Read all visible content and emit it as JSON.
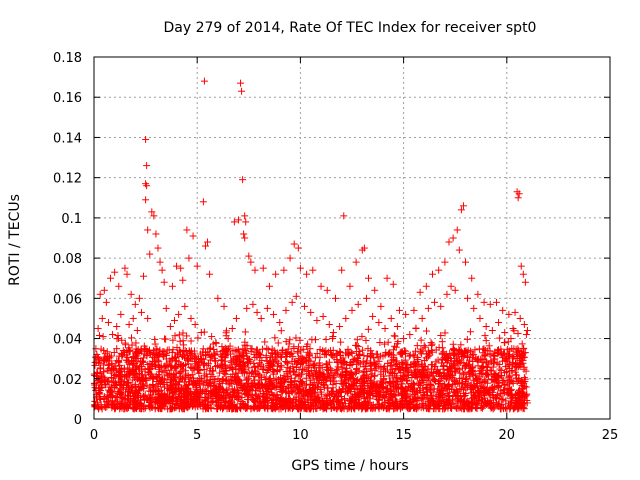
{
  "chart_data": {
    "type": "scatter",
    "title": "Day 279 of 2014, Rate Of TEC Index for receiver spt0",
    "xlabel": "GPS time / hours",
    "ylabel": "ROTI / TECUs",
    "xlim": [
      0,
      25
    ],
    "ylim": [
      0,
      0.18
    ],
    "xticks": [
      0,
      5,
      10,
      15,
      20,
      25
    ],
    "yticks": [
      0,
      0.02,
      0.04,
      0.06,
      0.08,
      0.1,
      0.12,
      0.14,
      0.16,
      0.18
    ],
    "xtick_labels": [
      "0",
      "5",
      "10",
      "15",
      "20",
      "25"
    ],
    "ytick_labels": [
      "0",
      "0.02",
      "0.04",
      "0.06",
      "0.08",
      "0.1",
      "0.12",
      "0.14",
      "0.16",
      "0.18"
    ],
    "marker": "+",
    "color": "#ff0000",
    "grid": true,
    "series": [
      {
        "name": "ROTI",
        "points": [
          [
            2.5,
            0.139
          ],
          [
            2.55,
            0.126
          ],
          [
            2.5,
            0.117
          ],
          [
            2.55,
            0.116
          ],
          [
            2.5,
            0.109
          ],
          [
            2.8,
            0.103
          ],
          [
            2.9,
            0.101
          ],
          [
            2.6,
            0.094
          ],
          [
            3.0,
            0.092
          ],
          [
            3.1,
            0.085
          ],
          [
            2.7,
            0.082
          ],
          [
            3.2,
            0.078
          ],
          [
            3.3,
            0.074
          ],
          [
            2.4,
            0.071
          ],
          [
            3.4,
            0.068
          ],
          [
            1.5,
            0.075
          ],
          [
            1.6,
            0.072
          ],
          [
            1.0,
            0.073
          ],
          [
            0.8,
            0.07
          ],
          [
            1.2,
            0.066
          ],
          [
            0.5,
            0.064
          ],
          [
            0.3,
            0.062
          ],
          [
            0.6,
            0.058
          ],
          [
            1.8,
            0.062
          ],
          [
            2.0,
            0.057
          ],
          [
            2.2,
            0.06
          ],
          [
            4.0,
            0.076
          ],
          [
            4.2,
            0.075
          ],
          [
            4.5,
            0.094
          ],
          [
            4.8,
            0.091
          ],
          [
            4.6,
            0.08
          ],
          [
            4.3,
            0.069
          ],
          [
            3.8,
            0.066
          ],
          [
            5.0,
            0.076
          ],
          [
            5.5,
            0.088
          ],
          [
            5.4,
            0.086
          ],
          [
            5.3,
            0.108
          ],
          [
            5.35,
            0.168
          ],
          [
            5.6,
            0.072
          ],
          [
            6.0,
            0.06
          ],
          [
            6.3,
            0.056
          ],
          [
            6.8,
            0.098
          ],
          [
            7.0,
            0.099
          ],
          [
            7.2,
            0.119
          ],
          [
            7.1,
            0.167
          ],
          [
            7.15,
            0.163
          ],
          [
            7.3,
            0.101
          ],
          [
            7.35,
            0.098
          ],
          [
            7.25,
            0.092
          ],
          [
            7.3,
            0.09
          ],
          [
            7.5,
            0.081
          ],
          [
            7.6,
            0.078
          ],
          [
            7.8,
            0.074
          ],
          [
            8.2,
            0.075
          ],
          [
            8.5,
            0.066
          ],
          [
            8.8,
            0.072
          ],
          [
            9.2,
            0.074
          ],
          [
            9.5,
            0.08
          ],
          [
            9.7,
            0.087
          ],
          [
            9.9,
            0.085
          ],
          [
            10.0,
            0.075
          ],
          [
            10.3,
            0.072
          ],
          [
            10.6,
            0.074
          ],
          [
            11.0,
            0.066
          ],
          [
            11.3,
            0.064
          ],
          [
            11.7,
            0.06
          ],
          [
            12.0,
            0.074
          ],
          [
            12.1,
            0.101
          ],
          [
            12.4,
            0.066
          ],
          [
            12.7,
            0.078
          ],
          [
            13.0,
            0.084
          ],
          [
            13.1,
            0.085
          ],
          [
            13.3,
            0.07
          ],
          [
            13.6,
            0.064
          ],
          [
            13.9,
            0.056
          ],
          [
            14.2,
            0.07
          ],
          [
            14.5,
            0.067
          ],
          [
            14.8,
            0.054
          ],
          [
            15.1,
            0.052
          ],
          [
            15.5,
            0.054
          ],
          [
            15.8,
            0.063
          ],
          [
            16.1,
            0.066
          ],
          [
            16.4,
            0.072
          ],
          [
            16.7,
            0.074
          ],
          [
            17.0,
            0.078
          ],
          [
            17.2,
            0.088
          ],
          [
            17.4,
            0.09
          ],
          [
            17.6,
            0.094
          ],
          [
            17.8,
            0.104
          ],
          [
            17.9,
            0.106
          ],
          [
            17.7,
            0.084
          ],
          [
            18.0,
            0.078
          ],
          [
            18.3,
            0.07
          ],
          [
            18.6,
            0.062
          ],
          [
            18.9,
            0.058
          ],
          [
            19.2,
            0.057
          ],
          [
            19.5,
            0.058
          ],
          [
            19.8,
            0.054
          ],
          [
            20.1,
            0.052
          ],
          [
            20.4,
            0.053
          ],
          [
            20.5,
            0.113
          ],
          [
            20.55,
            0.11
          ],
          [
            20.6,
            0.112
          ],
          [
            20.7,
            0.076
          ],
          [
            20.8,
            0.072
          ],
          [
            20.9,
            0.068
          ],
          [
            21.0,
            0.044
          ],
          [
            0.2,
            0.045
          ],
          [
            0.4,
            0.05
          ],
          [
            0.7,
            0.048
          ],
          [
            0.9,
            0.042
          ],
          [
            1.1,
            0.046
          ],
          [
            1.3,
            0.052
          ],
          [
            1.7,
            0.047
          ],
          [
            1.9,
            0.05
          ],
          [
            2.1,
            0.044
          ],
          [
            2.3,
            0.053
          ],
          [
            2.6,
            0.05
          ],
          [
            3.5,
            0.055
          ],
          [
            3.7,
            0.046
          ],
          [
            3.9,
            0.049
          ],
          [
            4.1,
            0.052
          ],
          [
            4.4,
            0.056
          ],
          [
            4.7,
            0.05
          ],
          [
            4.9,
            0.047
          ],
          [
            5.2,
            0.043
          ],
          [
            5.7,
            0.041
          ],
          [
            5.9,
            0.038
          ],
          [
            6.2,
            0.036
          ],
          [
            6.5,
            0.04
          ],
          [
            6.7,
            0.045
          ],
          [
            6.9,
            0.05
          ],
          [
            7.4,
            0.055
          ],
          [
            7.7,
            0.057
          ],
          [
            7.9,
            0.053
          ],
          [
            8.1,
            0.05
          ],
          [
            8.4,
            0.055
          ],
          [
            8.7,
            0.052
          ],
          [
            9.0,
            0.048
          ],
          [
            9.3,
            0.054
          ],
          [
            9.6,
            0.058
          ],
          [
            9.8,
            0.061
          ],
          [
            10.2,
            0.056
          ],
          [
            10.5,
            0.053
          ],
          [
            10.8,
            0.049
          ],
          [
            11.1,
            0.051
          ],
          [
            11.4,
            0.047
          ],
          [
            11.6,
            0.043
          ],
          [
            11.9,
            0.046
          ],
          [
            12.2,
            0.05
          ],
          [
            12.5,
            0.054
          ],
          [
            12.8,
            0.057
          ],
          [
            13.2,
            0.06
          ],
          [
            13.5,
            0.051
          ],
          [
            13.8,
            0.048
          ],
          [
            14.1,
            0.045
          ],
          [
            14.4,
            0.05
          ],
          [
            14.7,
            0.046
          ],
          [
            15.0,
            0.04
          ],
          [
            15.3,
            0.042
          ],
          [
            15.6,
            0.045
          ],
          [
            15.9,
            0.05
          ],
          [
            16.2,
            0.055
          ],
          [
            16.5,
            0.058
          ],
          [
            16.8,
            0.056
          ],
          [
            17.1,
            0.062
          ],
          [
            17.3,
            0.066
          ],
          [
            17.5,
            0.064
          ],
          [
            18.1,
            0.06
          ],
          [
            18.4,
            0.055
          ],
          [
            18.7,
            0.05
          ],
          [
            19.0,
            0.046
          ],
          [
            19.3,
            0.044
          ],
          [
            19.6,
            0.048
          ],
          [
            19.9,
            0.043
          ],
          [
            20.2,
            0.04
          ],
          [
            20.3,
            0.045
          ],
          [
            20.65,
            0.05
          ],
          [
            20.85,
            0.047
          ],
          [
            20.95,
            0.042
          ]
        ]
      }
    ],
    "baseline_band": {
      "x_start": 0,
      "x_end": 21,
      "y_min": 0.005,
      "y_max": 0.035
    }
  }
}
